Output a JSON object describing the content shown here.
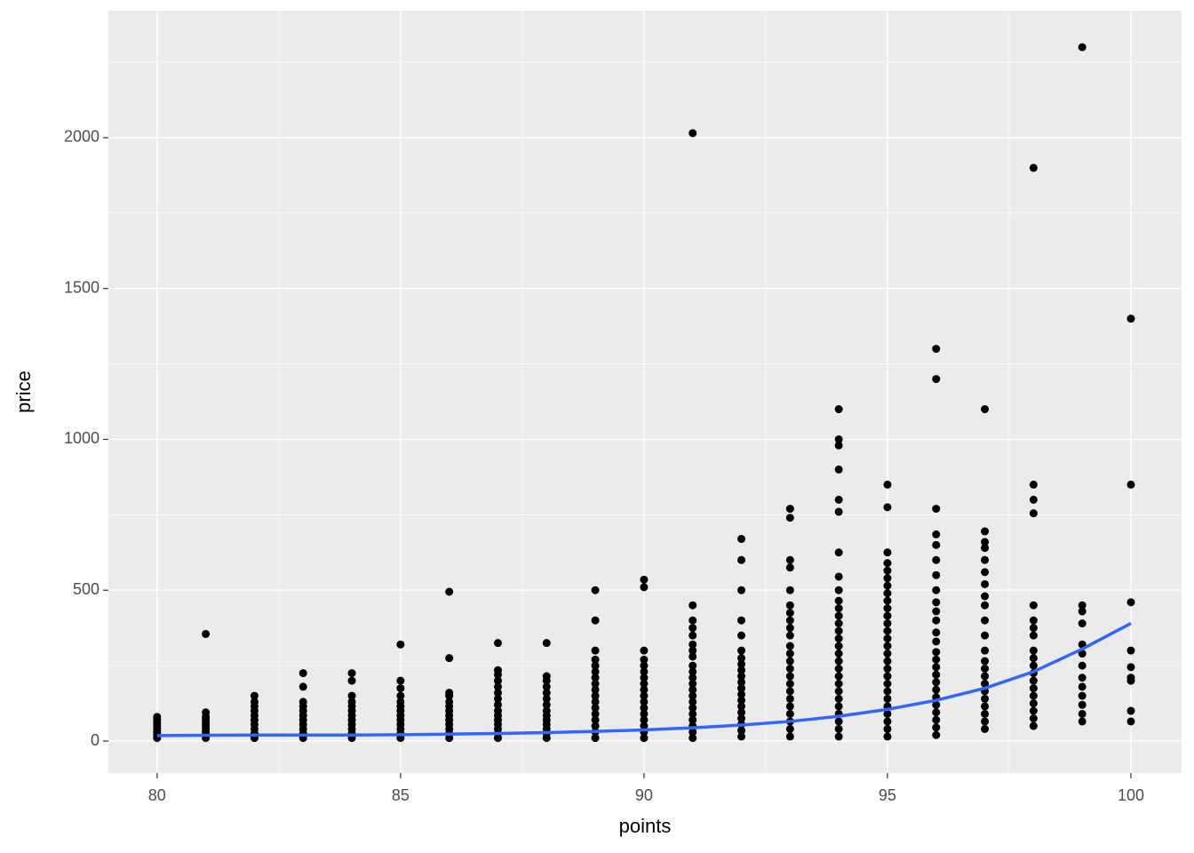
{
  "chart_data": {
    "type": "scatter",
    "x_label": "points",
    "y_label": "price",
    "xlim": [
      79,
      101.04
    ],
    "ylim": [
      -106,
      2421
    ],
    "xticks": [
      80,
      85,
      90,
      95,
      100
    ],
    "yticks": [
      0,
      500,
      1000,
      1500,
      2000
    ],
    "x_minor_grid": [
      82.5,
      87.5,
      92.5,
      97.5
    ],
    "y_minor_grid": [
      250,
      750,
      1250,
      1750,
      2250
    ],
    "grid": true,
    "point_color": "#000000",
    "groups": [
      {
        "x": 80,
        "values": [
          10,
          20,
          30,
          40,
          50,
          60,
          70,
          80
        ]
      },
      {
        "x": 81,
        "values": [
          10,
          20,
          30,
          40,
          50,
          60,
          70,
          80,
          95,
          355
        ]
      },
      {
        "x": 82,
        "values": [
          10,
          25,
          40,
          55,
          70,
          85,
          100,
          115,
          130,
          150
        ]
      },
      {
        "x": 83,
        "values": [
          10,
          25,
          40,
          55,
          70,
          85,
          100,
          115,
          130,
          180,
          225
        ]
      },
      {
        "x": 84,
        "values": [
          10,
          25,
          40,
          55,
          70,
          85,
          100,
          115,
          130,
          150,
          200,
          225
        ]
      },
      {
        "x": 85,
        "values": [
          10,
          25,
          40,
          55,
          70,
          85,
          100,
          115,
          130,
          150,
          175,
          200,
          320
        ]
      },
      {
        "x": 86,
        "values": [
          10,
          25,
          40,
          55,
          70,
          85,
          100,
          115,
          130,
          150,
          160,
          275,
          495
        ]
      },
      {
        "x": 87,
        "values": [
          10,
          25,
          40,
          55,
          70,
          85,
          100,
          120,
          140,
          160,
          180,
          200,
          220,
          235,
          325
        ]
      },
      {
        "x": 88,
        "values": [
          10,
          25,
          40,
          55,
          70,
          85,
          100,
          120,
          140,
          160,
          180,
          200,
          215,
          325
        ]
      },
      {
        "x": 89,
        "values": [
          10,
          30,
          50,
          70,
          90,
          110,
          130,
          150,
          170,
          190,
          210,
          230,
          250,
          270,
          300,
          400,
          500
        ]
      },
      {
        "x": 90,
        "values": [
          10,
          30,
          50,
          70,
          90,
          110,
          130,
          150,
          170,
          190,
          210,
          230,
          250,
          270,
          300,
          510,
          535
        ]
      },
      {
        "x": 91,
        "values": [
          10,
          30,
          50,
          70,
          90,
          110,
          130,
          150,
          170,
          190,
          210,
          230,
          250,
          280,
          300,
          320,
          350,
          375,
          400,
          450,
          2015
        ]
      },
      {
        "x": 92,
        "values": [
          15,
          35,
          55,
          75,
          95,
          115,
          135,
          155,
          175,
          195,
          215,
          235,
          255,
          275,
          300,
          350,
          400,
          500,
          600,
          670
        ]
      },
      {
        "x": 93,
        "values": [
          15,
          40,
          65,
          90,
          115,
          140,
          165,
          190,
          215,
          240,
          265,
          290,
          315,
          350,
          375,
          400,
          425,
          450,
          500,
          575,
          600,
          740,
          770
        ]
      },
      {
        "x": 94,
        "values": [
          15,
          40,
          65,
          90,
          115,
          140,
          165,
          190,
          215,
          240,
          265,
          290,
          315,
          340,
          365,
          390,
          415,
          440,
          465,
          500,
          545,
          625,
          760,
          800,
          900,
          980,
          1000,
          1100
        ]
      },
      {
        "x": 95,
        "values": [
          15,
          40,
          65,
          90,
          115,
          140,
          165,
          190,
          215,
          240,
          265,
          290,
          315,
          340,
          365,
          390,
          415,
          440,
          465,
          490,
          515,
          540,
          565,
          590,
          625,
          775,
          850
        ]
      },
      {
        "x": 96,
        "values": [
          20,
          45,
          70,
          95,
          120,
          145,
          170,
          195,
          220,
          245,
          270,
          295,
          330,
          360,
          400,
          430,
          460,
          500,
          550,
          600,
          650,
          685,
          770,
          1200,
          1300
        ]
      },
      {
        "x": 97,
        "values": [
          40,
          65,
          90,
          115,
          140,
          165,
          190,
          215,
          240,
          265,
          300,
          350,
          400,
          450,
          480,
          520,
          560,
          600,
          640,
          660,
          695,
          1100
        ]
      },
      {
        "x": 98,
        "values": [
          50,
          75,
          100,
          125,
          150,
          175,
          200,
          225,
          250,
          275,
          300,
          350,
          375,
          400,
          450,
          755,
          800,
          850,
          1900
        ]
      },
      {
        "x": 99,
        "values": [
          65,
          90,
          120,
          150,
          180,
          210,
          250,
          290,
          320,
          390,
          430,
          450,
          2300
        ]
      },
      {
        "x": 100,
        "values": [
          65,
          100,
          200,
          210,
          245,
          300,
          460,
          850,
          1400
        ]
      }
    ],
    "smooth": {
      "color": "#3366ff",
      "x": [
        80,
        81,
        82,
        83,
        84,
        85,
        86,
        87,
        88,
        89,
        90,
        91,
        92,
        93,
        94,
        95,
        96,
        97,
        98,
        99,
        100
      ],
      "values": [
        18,
        19,
        20,
        20,
        20,
        21,
        23,
        25,
        28,
        32,
        37,
        44,
        53,
        65,
        82,
        105,
        135,
        175,
        230,
        305,
        390
      ]
    }
  }
}
